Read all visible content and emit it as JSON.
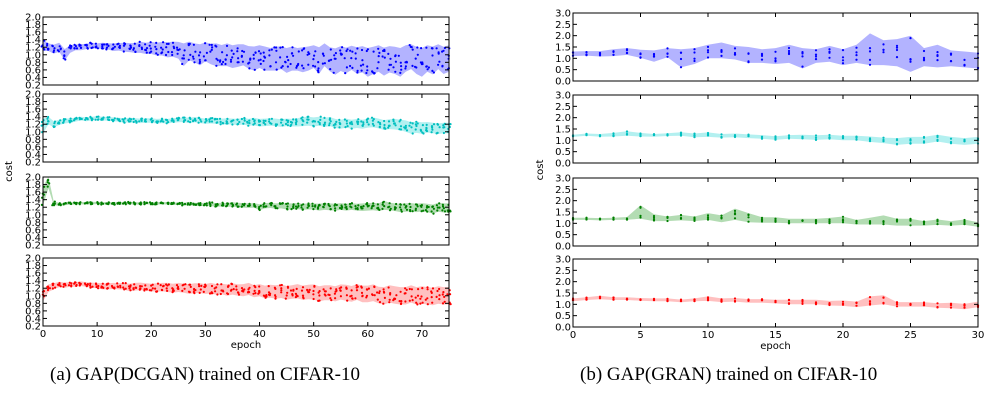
{
  "chart_data": [
    {
      "id": "dcgan",
      "type": "scatter",
      "band": true,
      "caption": "(a) GAP(DCGAN) trained on CIFAR-10",
      "xlabel": "epoch",
      "ylabel": "cost",
      "xlim": [
        0,
        75
      ],
      "xticks": [
        0,
        10,
        20,
        30,
        40,
        50,
        60,
        70
      ],
      "ylim": [
        0.2,
        2.0
      ],
      "yticks": [
        "0.2",
        "0.4",
        "0.6",
        "0.8",
        "1.0",
        "1.2",
        "1.4",
        "1.6",
        "1.8",
        "2.0"
      ],
      "grid": false,
      "panels": [
        {
          "color": "#0000ff",
          "fill": "#b3b3ff",
          "center": [
            1.25,
            1.2,
            1.15,
            1.2,
            1.0,
            1.15,
            1.2,
            1.2,
            1.22,
            1.25,
            1.23,
            1.24,
            1.22,
            1.2,
            1.21,
            1.2,
            1.19,
            1.18,
            1.2,
            1.17,
            1.18,
            1.15,
            1.16,
            1.13,
            1.15,
            1.12,
            1.0,
            1.1,
            1.05,
            1.0,
            1.08,
            1.02,
            1.0,
            0.98,
            1.0,
            0.95,
            0.98,
            1.0,
            0.93,
            0.9,
            0.95,
            0.9,
            0.88,
            0.9,
            0.92,
            0.85,
            0.9,
            0.88,
            0.87,
            0.9,
            0.95,
            0.85,
            1.0,
            0.88,
            0.82,
            0.9,
            0.85,
            0.92,
            0.85,
            0.88,
            0.8,
            0.85,
            0.9,
            0.82,
            0.88,
            0.85,
            0.8,
            0.9,
            0.95,
            0.85,
            0.8,
            0.9,
            0.85,
            0.95,
            0.85,
            0.9
          ],
          "spread": [
            0.15,
            0.1,
            0.12,
            0.12,
            0.15,
            0.1,
            0.08,
            0.08,
            0.07,
            0.07,
            0.07,
            0.08,
            0.08,
            0.1,
            0.1,
            0.12,
            0.12,
            0.13,
            0.15,
            0.15,
            0.16,
            0.17,
            0.18,
            0.2,
            0.2,
            0.22,
            0.3,
            0.25,
            0.25,
            0.28,
            0.25,
            0.27,
            0.3,
            0.28,
            0.3,
            0.3,
            0.3,
            0.28,
            0.3,
            0.32,
            0.3,
            0.32,
            0.3,
            0.32,
            0.3,
            0.33,
            0.32,
            0.3,
            0.33,
            0.32,
            0.3,
            0.35,
            0.3,
            0.32,
            0.35,
            0.33,
            0.34,
            0.32,
            0.35,
            0.35,
            0.38,
            0.36,
            0.35,
            0.37,
            0.35,
            0.36,
            0.38,
            0.35,
            0.33,
            0.36,
            0.38,
            0.35,
            0.37,
            0.33,
            0.36,
            0.35
          ]
        },
        {
          "color": "#00bfbf",
          "fill": "#b3f0f0",
          "center": [
            1.15,
            1.3,
            1.2,
            1.25,
            1.28,
            1.3,
            1.32,
            1.35,
            1.33,
            1.35,
            1.36,
            1.35,
            1.34,
            1.33,
            1.32,
            1.3,
            1.31,
            1.3,
            1.29,
            1.3,
            1.3,
            1.28,
            1.29,
            1.28,
            1.3,
            1.31,
            1.32,
            1.3,
            1.32,
            1.3,
            1.28,
            1.3,
            1.29,
            1.27,
            1.28,
            1.27,
            1.26,
            1.28,
            1.25,
            1.27,
            1.24,
            1.25,
            1.26,
            1.25,
            1.23,
            1.25,
            1.24,
            1.25,
            1.27,
            1.28,
            1.26,
            1.28,
            1.25,
            1.27,
            1.22,
            1.2,
            1.23,
            1.2,
            1.22,
            1.2,
            1.23,
            1.25,
            1.22,
            1.18,
            1.2,
            1.2,
            1.18,
            1.15,
            1.1,
            1.12,
            1.1,
            1.12,
            1.1,
            1.08,
            1.1,
            1.1
          ],
          "spread": [
            0.2,
            0.1,
            0.08,
            0.07,
            0.06,
            0.06,
            0.05,
            0.05,
            0.05,
            0.05,
            0.05,
            0.05,
            0.05,
            0.05,
            0.05,
            0.06,
            0.06,
            0.06,
            0.06,
            0.06,
            0.06,
            0.06,
            0.06,
            0.06,
            0.06,
            0.06,
            0.06,
            0.07,
            0.07,
            0.07,
            0.07,
            0.08,
            0.08,
            0.08,
            0.08,
            0.08,
            0.08,
            0.09,
            0.09,
            0.1,
            0.1,
            0.1,
            0.1,
            0.1,
            0.1,
            0.1,
            0.1,
            0.11,
            0.12,
            0.12,
            0.12,
            0.12,
            0.12,
            0.12,
            0.12,
            0.12,
            0.12,
            0.12,
            0.12,
            0.12,
            0.12,
            0.13,
            0.13,
            0.13,
            0.13,
            0.14,
            0.14,
            0.15,
            0.15,
            0.15,
            0.15,
            0.14,
            0.14,
            0.14,
            0.14,
            0.14
          ]
        },
        {
          "color": "#007f00",
          "fill": "#b3dcb3",
          "center": [
            1.5,
            1.85,
            1.3,
            1.28,
            1.28,
            1.3,
            1.3,
            1.31,
            1.3,
            1.31,
            1.31,
            1.3,
            1.31,
            1.3,
            1.3,
            1.3,
            1.31,
            1.3,
            1.3,
            1.31,
            1.3,
            1.3,
            1.31,
            1.3,
            1.29,
            1.3,
            1.28,
            1.3,
            1.28,
            1.27,
            1.28,
            1.28,
            1.26,
            1.27,
            1.26,
            1.27,
            1.26,
            1.25,
            1.24,
            1.25,
            1.2,
            1.24,
            1.25,
            1.23,
            1.24,
            1.22,
            1.22,
            1.23,
            1.21,
            1.22,
            1.22,
            1.2,
            1.22,
            1.21,
            1.2,
            1.22,
            1.2,
            1.22,
            1.2,
            1.2,
            1.21,
            1.22,
            1.2,
            1.25,
            1.22,
            1.2,
            1.18,
            1.19,
            1.2,
            1.18,
            1.2,
            1.18,
            1.15,
            1.2,
            1.18,
            1.18
          ],
          "spread": [
            0.25,
            0.15,
            0.05,
            0.04,
            0.03,
            0.03,
            0.03,
            0.03,
            0.03,
            0.03,
            0.03,
            0.03,
            0.03,
            0.03,
            0.03,
            0.03,
            0.03,
            0.03,
            0.03,
            0.03,
            0.03,
            0.03,
            0.03,
            0.03,
            0.03,
            0.03,
            0.04,
            0.04,
            0.04,
            0.04,
            0.04,
            0.05,
            0.05,
            0.05,
            0.05,
            0.06,
            0.06,
            0.06,
            0.06,
            0.06,
            0.08,
            0.07,
            0.07,
            0.07,
            0.07,
            0.08,
            0.08,
            0.08,
            0.08,
            0.08,
            0.08,
            0.09,
            0.09,
            0.09,
            0.09,
            0.09,
            0.09,
            0.09,
            0.09,
            0.1,
            0.1,
            0.1,
            0.1,
            0.12,
            0.1,
            0.1,
            0.11,
            0.11,
            0.11,
            0.11,
            0.11,
            0.11,
            0.12,
            0.12,
            0.12,
            0.12
          ]
        },
        {
          "color": "#ff0000",
          "fill": "#ffc0c0",
          "center": [
            1.0,
            1.2,
            1.25,
            1.3,
            1.28,
            1.3,
            1.3,
            1.32,
            1.3,
            1.28,
            1.27,
            1.25,
            1.25,
            1.26,
            1.25,
            1.25,
            1.22,
            1.24,
            1.25,
            1.23,
            1.22,
            1.22,
            1.23,
            1.22,
            1.2,
            1.22,
            1.2,
            1.18,
            1.2,
            1.2,
            1.18,
            1.2,
            1.17,
            1.18,
            1.15,
            1.18,
            1.15,
            1.15,
            1.18,
            1.12,
            1.15,
            1.1,
            1.12,
            1.1,
            1.12,
            1.08,
            1.1,
            1.12,
            1.08,
            1.1,
            1.1,
            1.05,
            1.08,
            1.08,
            1.05,
            1.1,
            1.08,
            1.05,
            1.1,
            1.05,
            1.05,
            1.08,
            1.02,
            1.0,
            1.05,
            1.02,
            1.0,
            1.0,
            1.05,
            1.0,
            1.02,
            1.0,
            0.98,
            1.02,
            1.0,
            1.0
          ],
          "spread": [
            0.15,
            0.1,
            0.08,
            0.07,
            0.07,
            0.06,
            0.06,
            0.06,
            0.06,
            0.07,
            0.07,
            0.08,
            0.08,
            0.08,
            0.08,
            0.09,
            0.1,
            0.1,
            0.1,
            0.1,
            0.1,
            0.11,
            0.11,
            0.12,
            0.12,
            0.12,
            0.12,
            0.13,
            0.13,
            0.13,
            0.13,
            0.14,
            0.14,
            0.14,
            0.15,
            0.15,
            0.15,
            0.16,
            0.16,
            0.16,
            0.16,
            0.17,
            0.17,
            0.18,
            0.18,
            0.18,
            0.18,
            0.19,
            0.19,
            0.19,
            0.2,
            0.2,
            0.2,
            0.2,
            0.2,
            0.2,
            0.21,
            0.21,
            0.21,
            0.22,
            0.22,
            0.22,
            0.22,
            0.23,
            0.23,
            0.23,
            0.23,
            0.23,
            0.23,
            0.23,
            0.23,
            0.23,
            0.23,
            0.23,
            0.23,
            0.23
          ]
        }
      ]
    },
    {
      "id": "gran",
      "type": "scatter",
      "band": true,
      "caption": "(b) GAP(GRAN) trained on CIFAR-10",
      "xlabel": "epoch",
      "ylabel": "cost",
      "xlim": [
        0,
        30
      ],
      "xticks": [
        0,
        5,
        10,
        15,
        20,
        25,
        30
      ],
      "ylim": [
        0.0,
        3.0
      ],
      "yticks": [
        "0.0",
        "0.5",
        "1.0",
        "1.5",
        "2.0",
        "2.5",
        "3.0"
      ],
      "grid": false,
      "panels": [
        {
          "color": "#0000ff",
          "fill": "#b3b3ff",
          "center": [
            1.2,
            1.22,
            1.2,
            1.25,
            1.3,
            1.2,
            1.1,
            1.25,
            1.0,
            1.1,
            1.3,
            1.35,
            1.25,
            1.15,
            1.1,
            1.1,
            1.2,
            1.0,
            1.1,
            1.2,
            1.05,
            1.2,
            1.4,
            1.25,
            1.25,
            1.2,
            1.05,
            1.1,
            1.0,
            0.95,
            0.9
          ],
          "spread": [
            0.1,
            0.1,
            0.12,
            0.15,
            0.15,
            0.18,
            0.25,
            0.2,
            0.4,
            0.35,
            0.3,
            0.35,
            0.3,
            0.35,
            0.3,
            0.35,
            0.4,
            0.45,
            0.3,
            0.35,
            0.35,
            0.4,
            0.7,
            0.55,
            0.6,
            0.8,
            0.4,
            0.5,
            0.35,
            0.35,
            0.35
          ]
        },
        {
          "color": "#00bfbf",
          "fill": "#b3f0f0",
          "center": [
            1.2,
            1.25,
            1.22,
            1.25,
            1.3,
            1.25,
            1.22,
            1.25,
            1.28,
            1.22,
            1.25,
            1.2,
            1.22,
            1.18,
            1.15,
            1.1,
            1.15,
            1.15,
            1.12,
            1.15,
            1.1,
            1.1,
            1.05,
            1.0,
            0.95,
            1.0,
            1.0,
            1.1,
            1.0,
            0.95,
            1.0
          ],
          "spread": [
            0.05,
            0.05,
            0.06,
            0.08,
            0.1,
            0.08,
            0.06,
            0.06,
            0.08,
            0.08,
            0.1,
            0.08,
            0.08,
            0.08,
            0.08,
            0.08,
            0.08,
            0.1,
            0.1,
            0.1,
            0.1,
            0.1,
            0.12,
            0.12,
            0.15,
            0.15,
            0.15,
            0.15,
            0.15,
            0.15,
            0.15
          ]
        },
        {
          "color": "#007f00",
          "fill": "#b3dcb3",
          "center": [
            1.2,
            1.2,
            1.18,
            1.2,
            1.22,
            1.5,
            1.25,
            1.2,
            1.25,
            1.2,
            1.3,
            1.2,
            1.4,
            1.25,
            1.15,
            1.15,
            1.1,
            1.1,
            1.1,
            1.12,
            1.15,
            1.05,
            1.1,
            1.15,
            1.05,
            1.05,
            1.0,
            1.05,
            1.0,
            1.05,
            0.95
          ],
          "spread": [
            0.05,
            0.05,
            0.05,
            0.05,
            0.06,
            0.3,
            0.15,
            0.1,
            0.12,
            0.1,
            0.15,
            0.15,
            0.25,
            0.2,
            0.12,
            0.12,
            0.1,
            0.1,
            0.1,
            0.12,
            0.15,
            0.1,
            0.15,
            0.2,
            0.15,
            0.15,
            0.1,
            0.12,
            0.1,
            0.12,
            0.1
          ]
        },
        {
          "color": "#ff0000",
          "fill": "#ffc0c0",
          "center": [
            1.2,
            1.25,
            1.3,
            1.25,
            1.25,
            1.22,
            1.2,
            1.2,
            1.15,
            1.2,
            1.25,
            1.18,
            1.2,
            1.15,
            1.15,
            1.12,
            1.1,
            1.1,
            1.1,
            1.05,
            1.05,
            1.0,
            1.15,
            1.2,
            1.0,
            1.0,
            1.0,
            0.95,
            0.95,
            0.9,
            1.0
          ],
          "spread": [
            0.06,
            0.06,
            0.08,
            0.06,
            0.06,
            0.06,
            0.06,
            0.06,
            0.06,
            0.06,
            0.1,
            0.08,
            0.08,
            0.08,
            0.08,
            0.08,
            0.1,
            0.1,
            0.1,
            0.1,
            0.12,
            0.12,
            0.2,
            0.2,
            0.1,
            0.1,
            0.1,
            0.1,
            0.12,
            0.12,
            0.12
          ]
        }
      ]
    }
  ]
}
